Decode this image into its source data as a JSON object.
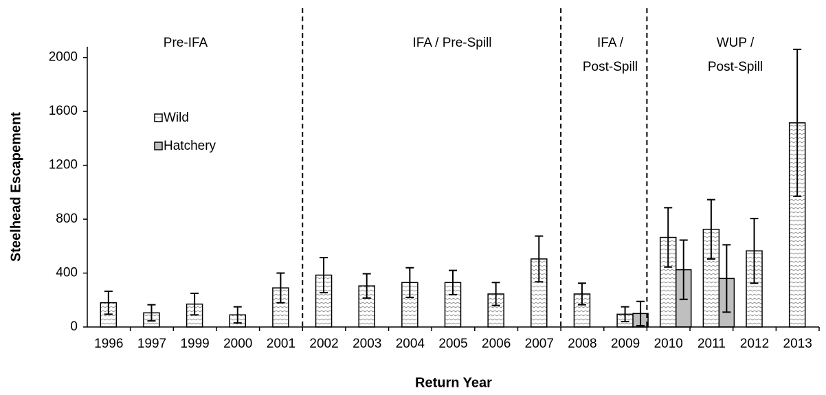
{
  "chart_data": {
    "type": "bar",
    "x_label": "Return Year",
    "y_label": "Steelhead Escapement",
    "categories": [
      "1996",
      "1997",
      "1999",
      "2000",
      "2001",
      "2002",
      "2003",
      "2004",
      "2005",
      "2006",
      "2007",
      "2008",
      "2009",
      "2010",
      "2011",
      "2012",
      "2013"
    ],
    "series": [
      {
        "name": "Wild",
        "color": "#ffffff",
        "hatch": true,
        "values": [
          180,
          105,
          170,
          90,
          290,
          385,
          305,
          330,
          330,
          245,
          505,
          245,
          95,
          665,
          725,
          565,
          1515
        ],
        "errors": [
          85,
          60,
          80,
          60,
          110,
          130,
          90,
          110,
          90,
          85,
          170,
          80,
          55,
          220,
          220,
          240,
          545
        ]
      },
      {
        "name": "Hatchery",
        "color": "#bfbfbf",
        "hatch": false,
        "values": [
          0,
          0,
          0,
          0,
          0,
          0,
          0,
          0,
          0,
          0,
          0,
          0,
          100,
          425,
          360,
          0,
          0
        ],
        "errors": [
          null,
          null,
          null,
          null,
          null,
          null,
          null,
          null,
          null,
          null,
          null,
          null,
          90,
          220,
          250,
          null,
          null
        ]
      }
    ],
    "periods": [
      {
        "lines": [
          "Pre-IFA"
        ]
      },
      {
        "lines": [
          "IFA / Pre-Spill"
        ]
      },
      {
        "lines": [
          "IFA /",
          "Post-Spill"
        ]
      },
      {
        "lines": [
          "WUP /",
          "Post-Spill"
        ]
      }
    ],
    "ylim": [
      0,
      2080
    ],
    "yticks": [
      0,
      400,
      800,
      1200,
      1600,
      2000
    ],
    "grid": false,
    "legend": "upper left"
  }
}
